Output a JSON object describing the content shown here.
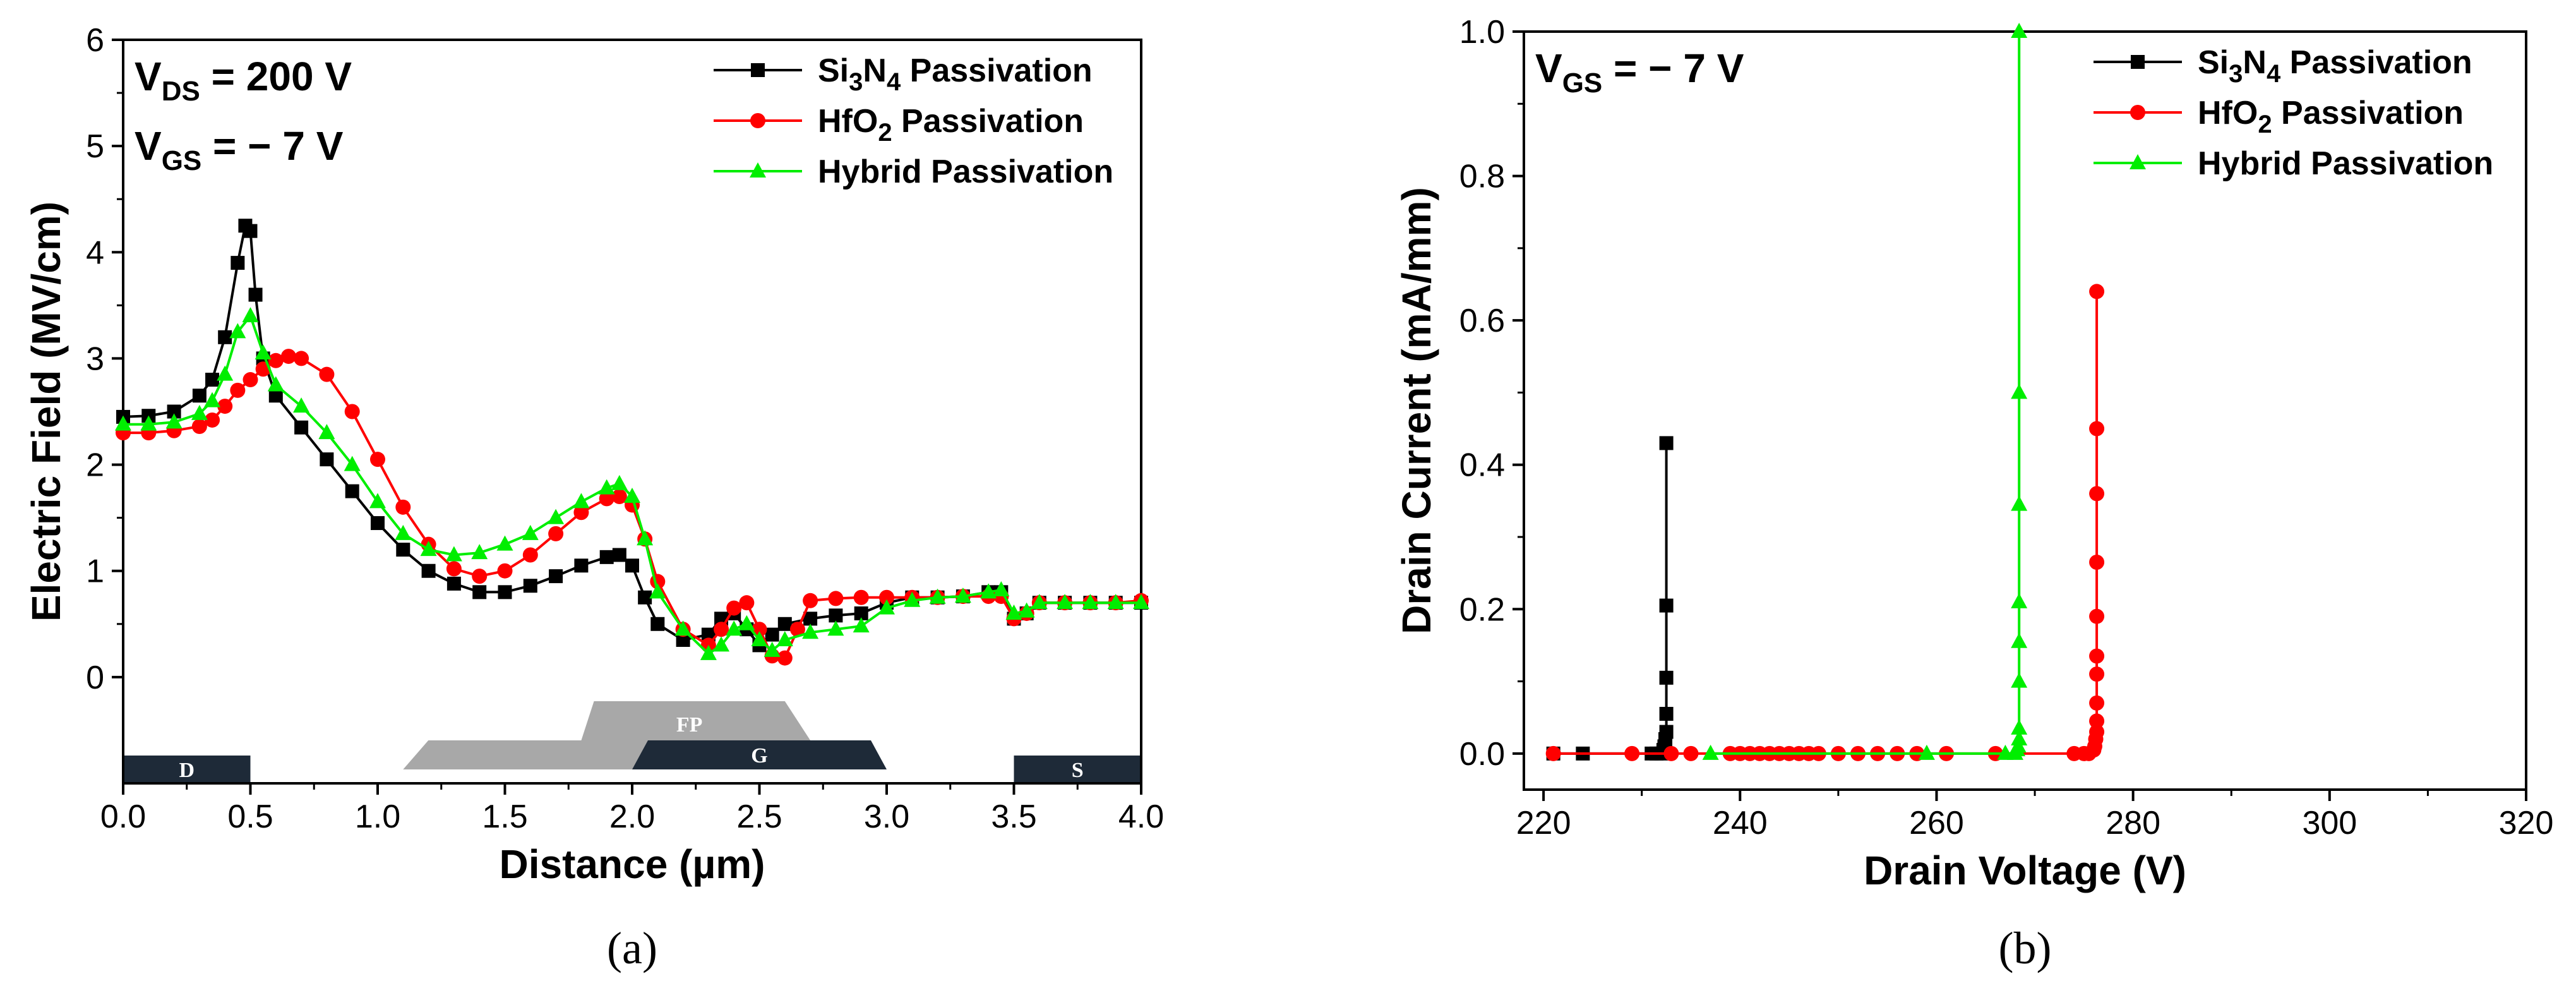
{
  "chart_data": [
    {
      "type": "line",
      "panel_label": "(a)",
      "xlabel": "Distance (µm)",
      "ylabel": "Electric Field (MV/cm)",
      "xlim": [
        0.0,
        4.0
      ],
      "ylim": [
        -1.0,
        6.0
      ],
      "x_ticks": [
        "0.0",
        "0.5",
        "1.0",
        "1.5",
        "2.0",
        "2.5",
        "3.0",
        "3.5",
        "4.0"
      ],
      "y_ticks": [
        "0",
        "1",
        "2",
        "3",
        "4",
        "5",
        "6"
      ],
      "annotations": [
        {
          "main": "V",
          "sub": "DS",
          "rest": " = 200 V"
        },
        {
          "main": "V",
          "sub": "GS",
          "rest": " = − 7 V"
        }
      ],
      "legend": [
        {
          "series": "Si3N4",
          "parts": [
            [
              "Si",
              ""
            ],
            [
              "3",
              "sub"
            ],
            [
              "N",
              ""
            ],
            [
              "4",
              "sub"
            ],
            [
              " Passivation",
              ""
            ]
          ]
        },
        {
          "series": "HfO2",
          "parts": [
            [
              "HfO",
              ""
            ],
            [
              "2",
              "sub"
            ],
            [
              " Passivation",
              ""
            ]
          ]
        },
        {
          "series": "Hybrid",
          "parts": [
            [
              "Hybrid Passivation",
              ""
            ]
          ]
        }
      ],
      "device_regions": [
        {
          "label": "D",
          "x_range": [
            0.0,
            0.5
          ]
        },
        {
          "label": "FP",
          "x_range": [
            1.1,
            2.7
          ]
        },
        {
          "label": "G",
          "x_range": [
            2.0,
            3.0
          ]
        },
        {
          "label": "S",
          "x_range": [
            3.5,
            4.0
          ]
        }
      ],
      "series": [
        {
          "name": "Si3N4 Passivation",
          "color": "#000000",
          "marker": "square",
          "x": [
            0,
            0.1,
            0.2,
            0.3,
            0.35,
            0.4,
            0.45,
            0.48,
            0.5,
            0.52,
            0.55,
            0.6,
            0.7,
            0.8,
            0.9,
            1.0,
            1.1,
            1.2,
            1.3,
            1.4,
            1.5,
            1.6,
            1.7,
            1.8,
            1.9,
            1.95,
            2.0,
            2.05,
            2.1,
            2.2,
            2.3,
            2.35,
            2.4,
            2.45,
            2.5,
            2.55,
            2.6,
            2.7,
            2.8,
            2.9,
            3.0,
            3.1,
            3.2,
            3.3,
            3.4,
            3.45,
            3.5,
            3.55,
            3.6,
            3.7,
            3.8,
            3.9,
            4.0
          ],
          "y": [
            2.45,
            2.46,
            2.5,
            2.65,
            2.8,
            3.2,
            3.9,
            4.25,
            4.2,
            3.6,
            3.0,
            2.65,
            2.35,
            2.05,
            1.75,
            1.45,
            1.2,
            1.0,
            0.88,
            0.8,
            0.8,
            0.86,
            0.95,
            1.05,
            1.13,
            1.15,
            1.05,
            0.75,
            0.5,
            0.35,
            0.4,
            0.55,
            0.6,
            0.45,
            0.3,
            0.4,
            0.5,
            0.55,
            0.58,
            0.6,
            0.7,
            0.75,
            0.75,
            0.76,
            0.8,
            0.8,
            0.55,
            0.6,
            0.7,
            0.7,
            0.7,
            0.7,
            0.7
          ]
        },
        {
          "name": "HfO2 Passivation",
          "color": "#ff0000",
          "marker": "circle",
          "x": [
            0,
            0.1,
            0.2,
            0.3,
            0.35,
            0.4,
            0.45,
            0.5,
            0.55,
            0.6,
            0.65,
            0.7,
            0.8,
            0.9,
            1.0,
            1.1,
            1.2,
            1.3,
            1.4,
            1.5,
            1.6,
            1.7,
            1.8,
            1.9,
            1.95,
            2.0,
            2.05,
            2.1,
            2.2,
            2.3,
            2.35,
            2.4,
            2.45,
            2.5,
            2.55,
            2.6,
            2.65,
            2.7,
            2.8,
            2.9,
            3.0,
            3.1,
            3.2,
            3.3,
            3.4,
            3.45,
            3.5,
            3.55,
            3.6,
            3.7,
            3.8,
            3.9,
            4.0
          ],
          "y": [
            2.3,
            2.3,
            2.32,
            2.36,
            2.42,
            2.55,
            2.7,
            2.8,
            2.9,
            2.98,
            3.02,
            3.0,
            2.85,
            2.5,
            2.05,
            1.6,
            1.25,
            1.02,
            0.95,
            1.0,
            1.15,
            1.35,
            1.55,
            1.68,
            1.7,
            1.62,
            1.3,
            0.9,
            0.45,
            0.3,
            0.45,
            0.65,
            0.7,
            0.45,
            0.2,
            0.18,
            0.45,
            0.72,
            0.74,
            0.75,
            0.75,
            0.75,
            0.75,
            0.76,
            0.76,
            0.76,
            0.55,
            0.6,
            0.7,
            0.7,
            0.7,
            0.7,
            0.72
          ]
        },
        {
          "name": "Hybrid Passivation",
          "color": "#00ee00",
          "marker": "triangle",
          "x": [
            0,
            0.1,
            0.2,
            0.3,
            0.35,
            0.4,
            0.45,
            0.5,
            0.55,
            0.6,
            0.7,
            0.8,
            0.9,
            1.0,
            1.1,
            1.2,
            1.3,
            1.4,
            1.5,
            1.6,
            1.7,
            1.8,
            1.9,
            1.95,
            2.0,
            2.05,
            2.1,
            2.2,
            2.3,
            2.35,
            2.4,
            2.45,
            2.5,
            2.55,
            2.6,
            2.7,
            2.8,
            2.9,
            3.0,
            3.1,
            3.2,
            3.3,
            3.4,
            3.45,
            3.5,
            3.55,
            3.6,
            3.7,
            3.8,
            3.9,
            4.0
          ],
          "y": [
            2.38,
            2.38,
            2.4,
            2.48,
            2.6,
            2.85,
            3.25,
            3.4,
            3.05,
            2.75,
            2.55,
            2.3,
            2.0,
            1.65,
            1.35,
            1.2,
            1.15,
            1.17,
            1.25,
            1.35,
            1.5,
            1.65,
            1.78,
            1.82,
            1.7,
            1.3,
            0.8,
            0.45,
            0.22,
            0.3,
            0.45,
            0.5,
            0.35,
            0.25,
            0.35,
            0.42,
            0.45,
            0.48,
            0.65,
            0.72,
            0.75,
            0.76,
            0.8,
            0.82,
            0.6,
            0.62,
            0.7,
            0.7,
            0.7,
            0.7,
            0.7
          ]
        }
      ]
    },
    {
      "type": "line",
      "panel_label": "(b)",
      "xlabel": "Drain Voltage (V)",
      "ylabel": "Drain Current (mA/mm)",
      "xlim": [
        218,
        320
      ],
      "ylim": [
        -0.05,
        1.0
      ],
      "x_ticks": [
        "220",
        "240",
        "260",
        "280",
        "300",
        "320"
      ],
      "y_ticks": [
        "0.0",
        "0.2",
        "0.4",
        "0.6",
        "0.8",
        "1.0"
      ],
      "annotations": [
        {
          "main": "V",
          "sub": "GS",
          "rest": " = − 7 V"
        }
      ],
      "legend": [
        {
          "series": "Si3N4",
          "parts": [
            [
              "Si",
              ""
            ],
            [
              "3",
              "sub"
            ],
            [
              "N",
              ""
            ],
            [
              "4",
              "sub"
            ],
            [
              " Passivation",
              ""
            ]
          ]
        },
        {
          "series": "HfO2",
          "parts": [
            [
              "HfO",
              ""
            ],
            [
              "2",
              "sub"
            ],
            [
              " Passivation",
              ""
            ]
          ]
        },
        {
          "series": "Hybrid",
          "parts": [
            [
              "Hybrid Passivation",
              ""
            ]
          ]
        }
      ],
      "series": [
        {
          "name": "Si3N4 Passivation",
          "color": "#000000",
          "marker": "square",
          "x": [
            221,
            224,
            231,
            231.5,
            232,
            232.2,
            232.3,
            232.4,
            232.5,
            232.5,
            232.5,
            232.5,
            232.5
          ],
          "y": [
            0,
            0,
            0,
            0,
            0,
            0.005,
            0.01,
            0.02,
            0.03,
            0.055,
            0.105,
            0.205,
            0.43
          ]
        },
        {
          "name": "HfO2 Passivation",
          "color": "#ff0000",
          "marker": "circle",
          "x": [
            221,
            229,
            233,
            235,
            239,
            240,
            241,
            242,
            243,
            244,
            245,
            246,
            247,
            248,
            250,
            252,
            254,
            256,
            258,
            261,
            266,
            274,
            275,
            275.5,
            276,
            276.1,
            276.2,
            276.3,
            276.3,
            276.3,
            276.3,
            276.3,
            276.3,
            276.3,
            276.3,
            276.3,
            276.3
          ],
          "y": [
            0,
            0,
            0,
            0,
            0,
            0,
            0,
            0,
            0,
            0,
            0,
            0,
            0,
            0,
            0,
            0,
            0,
            0,
            0,
            0,
            0,
            0,
            0,
            0,
            0.005,
            0.01,
            0.02,
            0.03,
            0.045,
            0.07,
            0.11,
            0.135,
            0.19,
            0.265,
            0.36,
            0.45,
            0.64
          ]
        },
        {
          "name": "Hybrid Passivation",
          "color": "#00ee00",
          "marker": "triangle",
          "x": [
            237,
            259,
            267,
            268,
            268.2,
            268.3,
            268.4,
            268.4,
            268.4,
            268.4,
            268.4,
            268.4,
            268.4,
            268.4
          ],
          "y": [
            0,
            0,
            0,
            0,
            0.005,
            0.01,
            0.02,
            0.035,
            0.1,
            0.155,
            0.21,
            0.345,
            0.5,
            1.0
          ]
        }
      ]
    }
  ]
}
